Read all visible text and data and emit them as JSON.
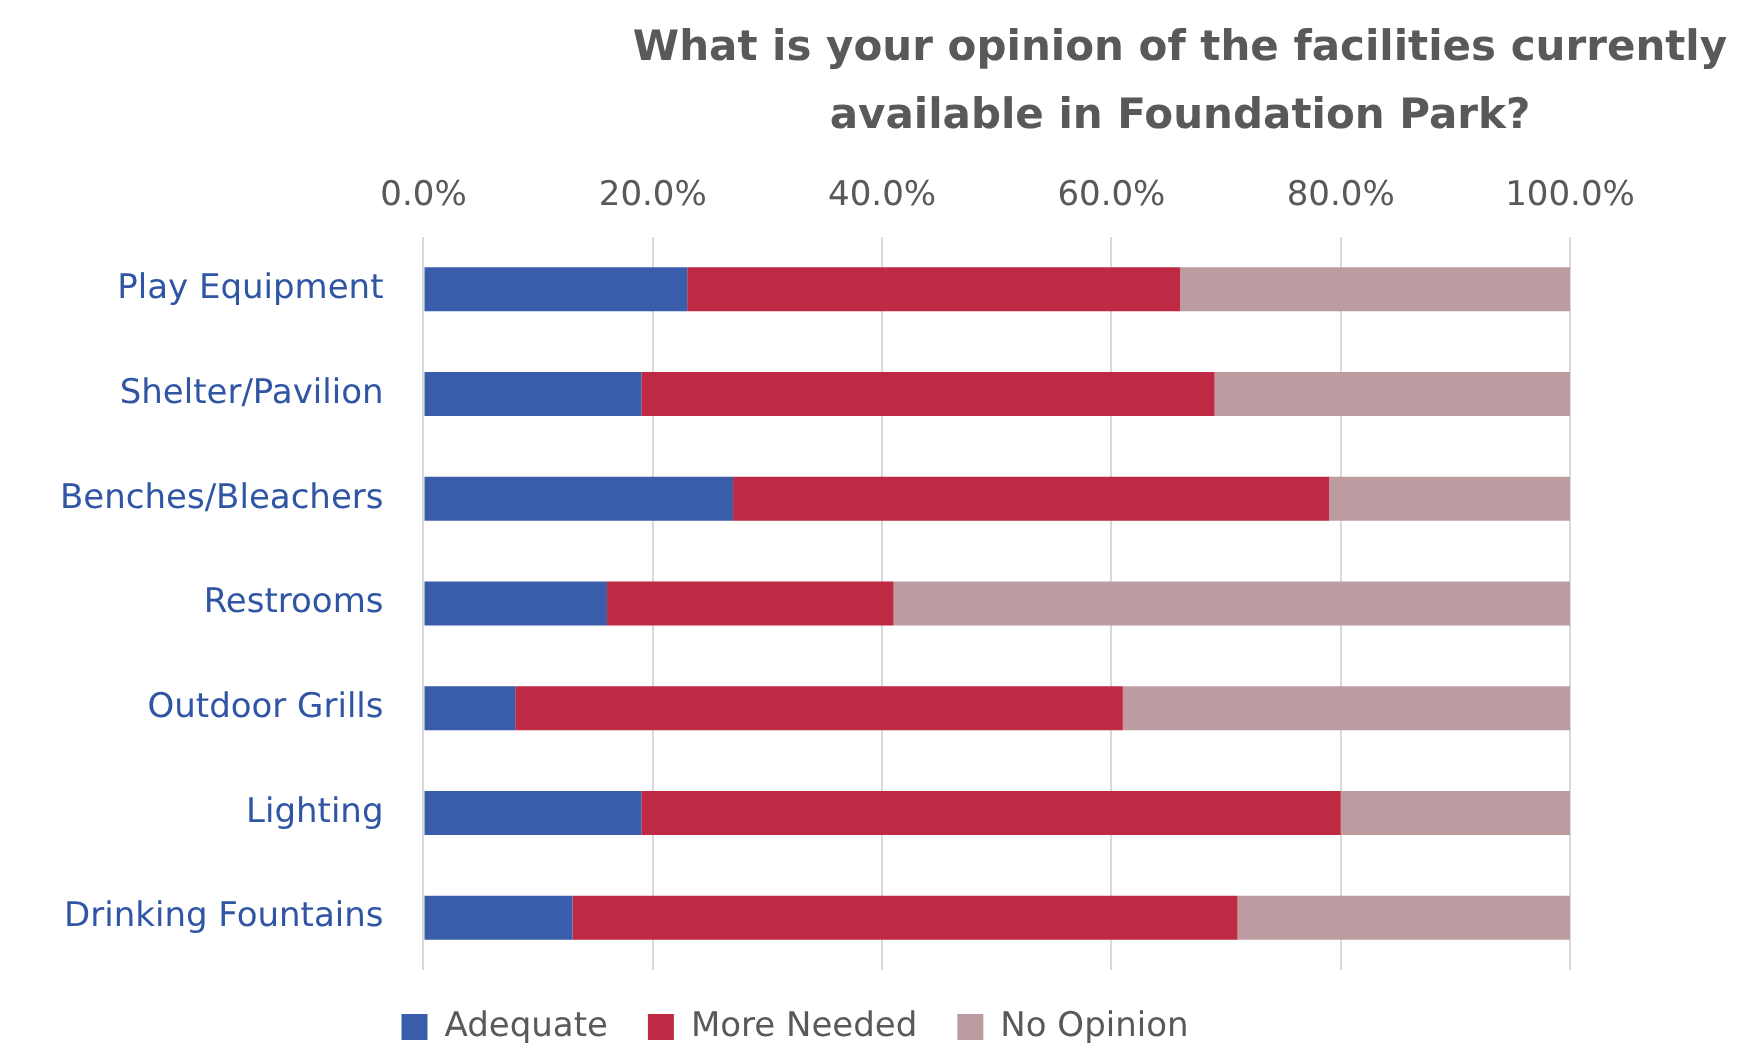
{
  "chart_data": {
    "type": "bar",
    "orientation": "horizontal",
    "stacked": true,
    "title": "What is your opinion of the facilities currently available in Foundation Park?",
    "categories": [
      "Play Equipment",
      "Shelter/Pavilion",
      "Benches/Bleachers",
      "Restrooms",
      "Outdoor Grills",
      "Lighting",
      "Drinking Fountains"
    ],
    "series": [
      {
        "name": "Adequate",
        "color": "#3a5dab",
        "values": [
          23,
          19,
          27,
          16,
          8,
          19,
          13
        ]
      },
      {
        "name": "More Needed",
        "color": "#be2a44",
        "values": [
          43,
          50,
          52,
          25,
          53,
          61,
          58
        ]
      },
      {
        "name": "No Opinion",
        "color": "#bc9ca0",
        "values": [
          34,
          31,
          21,
          59,
          39,
          20,
          29
        ]
      }
    ],
    "xlim": [
      0,
      100
    ],
    "xticks": [
      {
        "value": 0,
        "label": "0.0%"
      },
      {
        "value": 20,
        "label": "20.0%"
      },
      {
        "value": 40,
        "label": "40.0%"
      },
      {
        "value": 60,
        "label": "60.0%"
      },
      {
        "value": 80,
        "label": "80.0%"
      },
      {
        "value": 100,
        "label": "100.0%"
      }
    ],
    "grid": "x",
    "legend": "bottom"
  }
}
